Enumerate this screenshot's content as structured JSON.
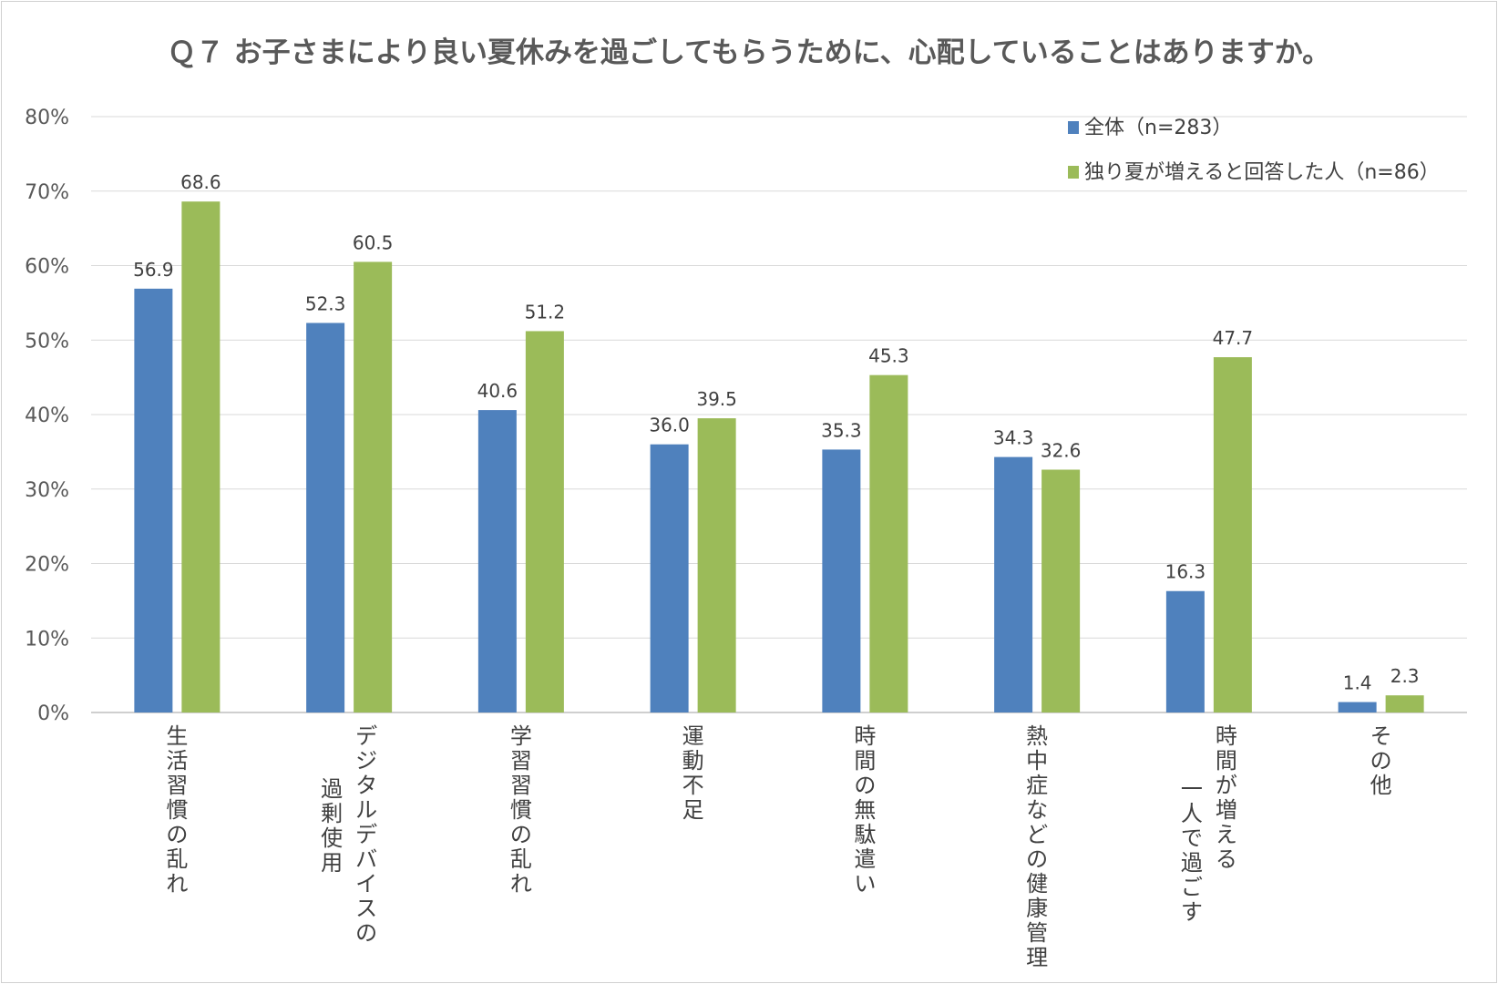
{
  "chart_data": {
    "type": "bar",
    "title": "Ｑ７ お子さまにより良い夏休みを過ごしてもらうために、心配していることはありますか。",
    "ylim": [
      0,
      80
    ],
    "y_ticks": [
      "0%",
      "10%",
      "20%",
      "30%",
      "40%",
      "50%",
      "60%",
      "70%",
      "80%"
    ],
    "y_tick_values": [
      0,
      10,
      20,
      30,
      40,
      50,
      60,
      70,
      80
    ],
    "categories": [
      [
        "生活習慣の乱れ"
      ],
      [
        "デジタルデバイスの",
        "過剰使用"
      ],
      [
        "学習習慣の乱れ"
      ],
      [
        "運動不足"
      ],
      [
        "時間の無駄遣い"
      ],
      [
        "熱中症などの健康管理"
      ],
      [
        "時間が増える",
        "一人で過ごす"
      ],
      [
        "その他"
      ]
    ],
    "series": [
      {
        "name": "全体（n=283）",
        "color": "#4f81bd",
        "values": [
          56.9,
          52.3,
          40.6,
          36.0,
          35.3,
          34.3,
          16.3,
          1.4
        ],
        "labels": [
          "56.9",
          "52.3",
          "40.6",
          "36.0",
          "35.3",
          "34.3",
          "16.3",
          "1.4"
        ]
      },
      {
        "name": "独り夏が増えると回答した人（n=86）",
        "color": "#9bbb59",
        "values": [
          68.6,
          60.5,
          51.2,
          39.5,
          45.3,
          32.6,
          47.7,
          2.3
        ],
        "labels": [
          "68.6",
          "60.5",
          "51.2",
          "39.5",
          "45.3",
          "32.6",
          "47.7",
          "2.3"
        ]
      }
    ],
    "legend_position": "top-right",
    "grid": true
  }
}
